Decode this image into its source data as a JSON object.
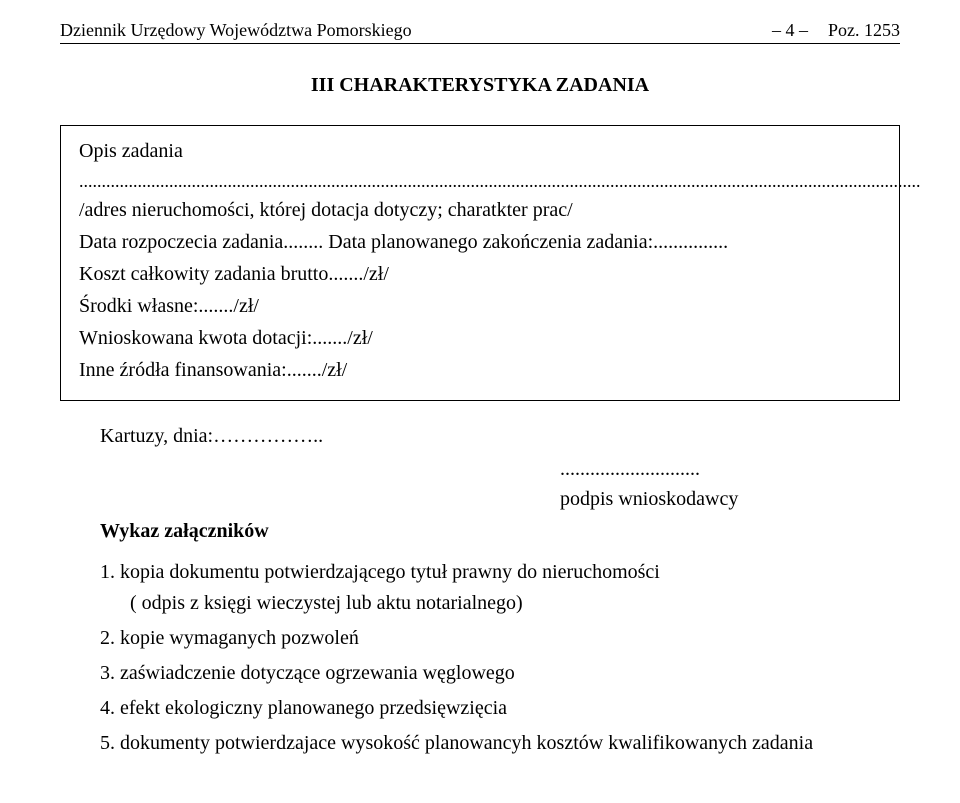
{
  "header": {
    "left": "Dziennik Urzędowy Województwa Pomorskiego",
    "center": "– 4 –",
    "right": "Poz. 1253"
  },
  "section_title": "III CHARAKTERYSTYKA ZADANIA",
  "box": {
    "opis_label": "Opis zadania",
    "opis_dots": "...........................................................................................................................................................................................",
    "line1": "/adres nieruchomości, której dotacja dotyczy; charatkter prac/",
    "line2": "Data rozpoczecia zadania........ Data planowanego zakończenia zadania:...............",
    "line3": "Koszt całkowity zadania brutto......./zł/",
    "line4": "Środki własne:......./zł/",
    "line5": "Wnioskowana kwota dotacji:......./zł/",
    "line6": "Inne źródła finansowania:......./zł/"
  },
  "kartuzy": "Kartuzy, dnia:……………..",
  "podpis_dots": "............................",
  "podpis_label": "podpis wnioskodawcy",
  "wykaz": "Wykaz załączników",
  "items": {
    "i1": "1. kopia dokumentu potwierdzającego tytuł prawny do nieruchomości",
    "i1sub": "( odpis z księgi wieczystej lub aktu notarialnego)",
    "i2": "2. kopie wymaganych pozwoleń",
    "i3": "3. zaświadczenie dotyczące ogrzewania węglowego",
    "i4": "4. efekt ekologiczny planowanego przedsięwzięcia",
    "i5": "5. dokumenty potwierdzajace wysokość planowancyh kosztów kwalifikowanych zadania"
  }
}
